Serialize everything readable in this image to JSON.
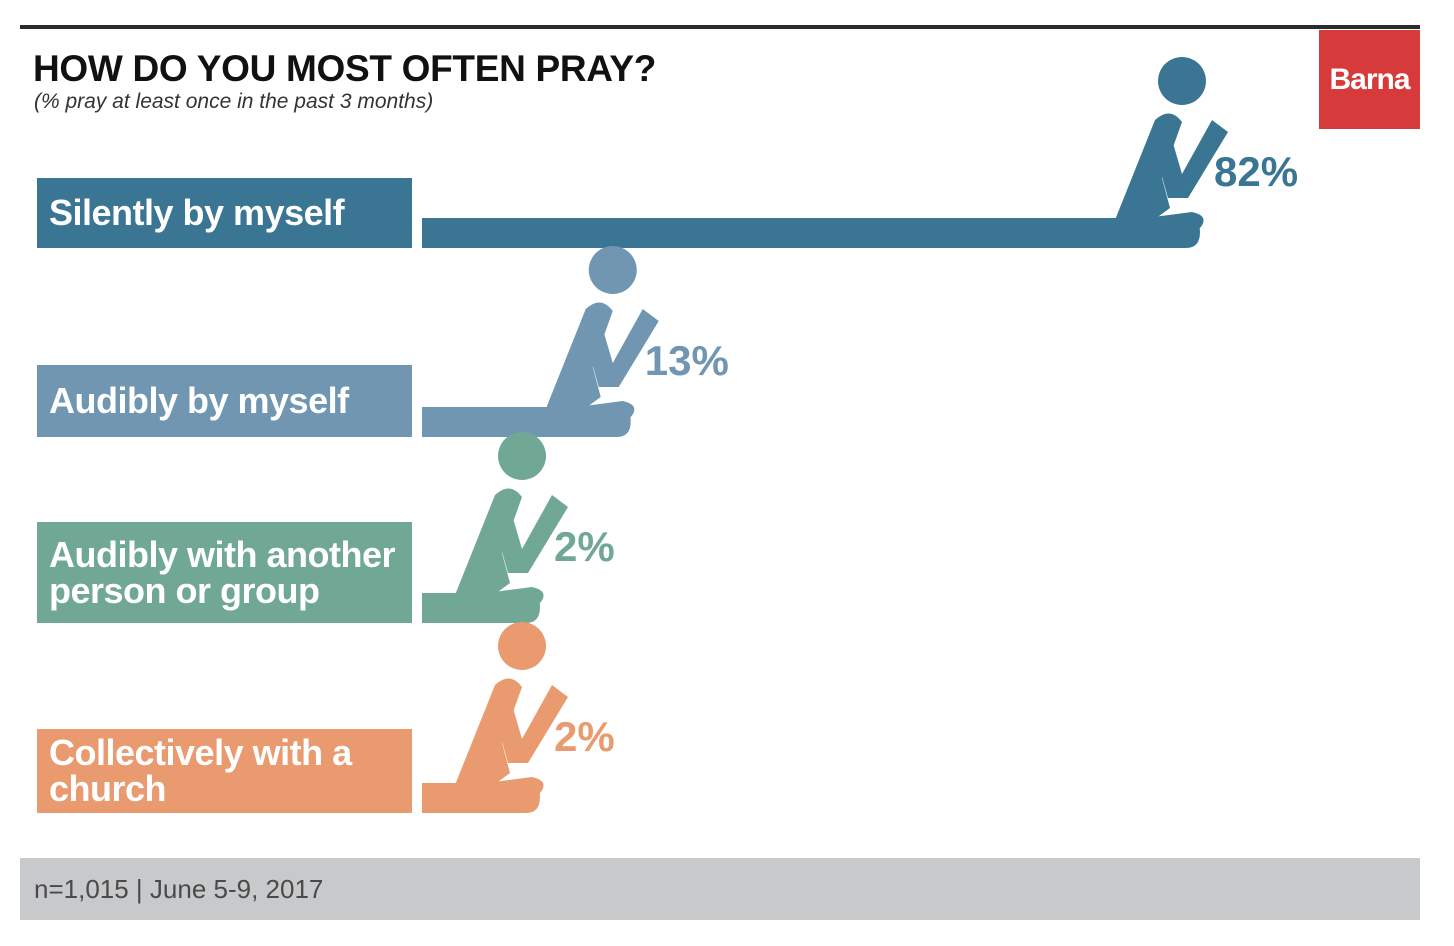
{
  "header": {
    "title": "HOW DO YOU MOST OFTEN PRAY?",
    "subtitle": "(% pray at least once in the past 3 months)"
  },
  "brand": {
    "name": "Barna",
    "color": "#d63a3a"
  },
  "chart_data": {
    "type": "bar",
    "orientation": "horizontal",
    "title": "HOW DO YOU MOST OFTEN PRAY?",
    "subtitle": "(% pray at least once in the past 3 months)",
    "categories": [
      "Silently by myself",
      "Audibly by myself",
      "Audibly with another person or group",
      "Collectively with a church"
    ],
    "category_lines": [
      [
        "Silently by myself"
      ],
      [
        "Audibly by myself"
      ],
      [
        "Audibly with another",
        "person or group"
      ],
      [
        "Collectively with a",
        "church"
      ]
    ],
    "values": [
      82,
      13,
      2,
      2
    ],
    "value_labels": [
      "82%",
      "13%",
      "2%",
      "2%"
    ],
    "colors": [
      "#3a7694",
      "#7096b2",
      "#70a895",
      "#e99a6f"
    ],
    "unit": "%",
    "icon": "kneeling-prayer-figure-icon",
    "grid": false
  },
  "footer": {
    "text": "n=1,015 | June 5-9, 2017"
  }
}
